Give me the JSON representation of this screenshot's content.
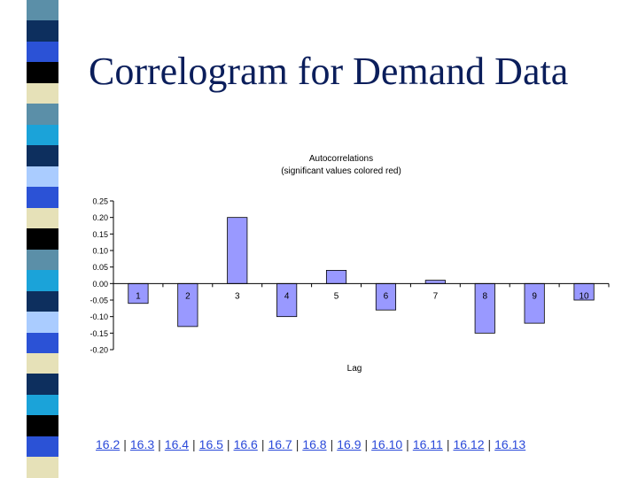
{
  "slide": {
    "title": "Correlogram for Demand Data"
  },
  "strip_colors": [
    "#5b8fa8",
    "#0d2f5e",
    "#2b52d6",
    "#000000",
    "#e6e1b8",
    "#5b8fa8",
    "#1ba3d9",
    "#0d2f5e",
    "#aaccff",
    "#2b52d6",
    "#e6e1b8",
    "#000000",
    "#5b8fa8",
    "#1ba3d9",
    "#0d2f5e",
    "#aaccff",
    "#2b52d6",
    "#e6e1b8",
    "#0d2f5e",
    "#1ba3d9",
    "#000000",
    "#2b52d6",
    "#e6e1b8"
  ],
  "nav": {
    "links": [
      "16.2",
      "16.3",
      "16.4",
      "16.5",
      "16.6",
      "16.7",
      "16.8",
      "16.9",
      "16.10",
      "16.11",
      "16.12",
      "16.13"
    ],
    "separator": "|"
  },
  "chart_data": {
    "type": "bar",
    "title": "Autocorrelations",
    "subtitle": "(significant values colored red)",
    "xlabel": "Lag",
    "ylabel": "",
    "categories": [
      "1",
      "2",
      "3",
      "4",
      "5",
      "6",
      "7",
      "8",
      "9",
      "10"
    ],
    "values": [
      -0.06,
      -0.13,
      0.2,
      -0.1,
      0.04,
      -0.08,
      0.01,
      -0.15,
      -0.12,
      -0.05
    ],
    "ylim": [
      -0.2,
      0.25
    ],
    "yticks": [
      0.25,
      0.2,
      0.15,
      0.1,
      0.05,
      0,
      -0.05,
      -0.1,
      -0.15,
      -0.2
    ],
    "ytick_labels": [
      "0.25",
      "0.20",
      "0.15",
      "0.10",
      "0.05",
      "0.00",
      "-0.05",
      "-0.10",
      "-0.15",
      "-0.20"
    ],
    "bar_color": "#9999ff",
    "bar_edge": "#000000"
  }
}
